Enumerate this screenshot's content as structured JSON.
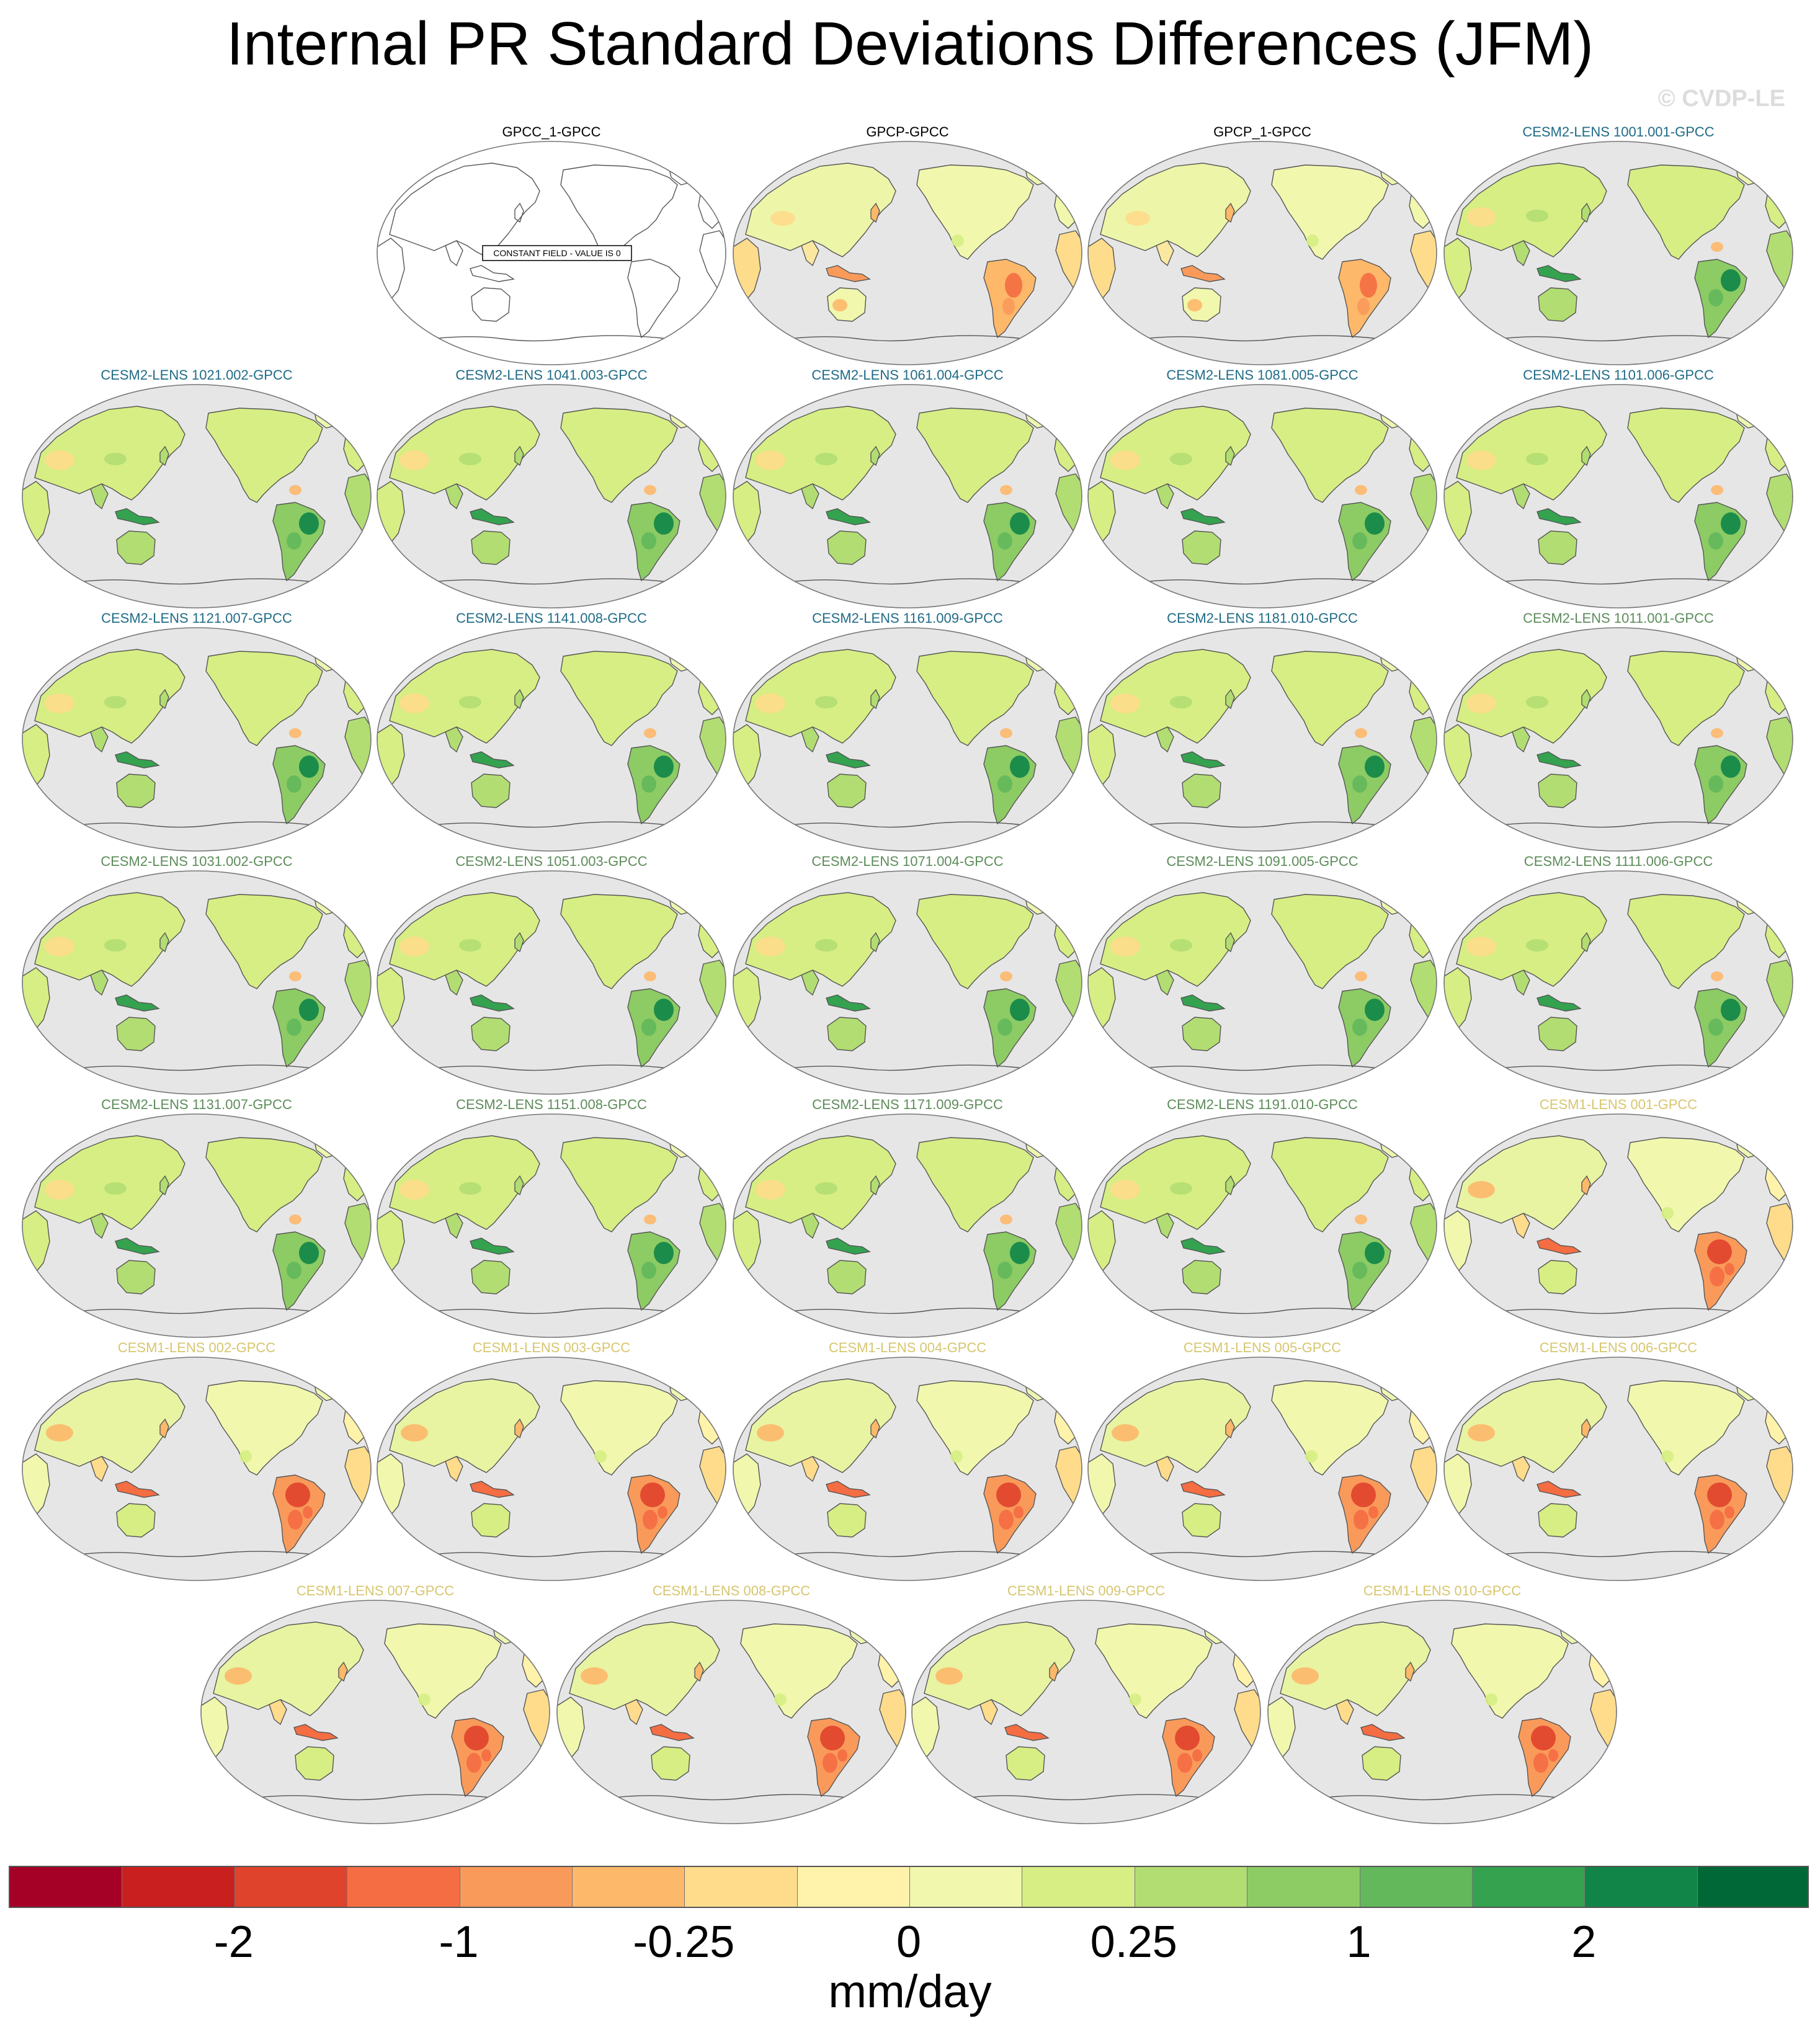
{
  "title": "Internal PR Standard Deviations Differences (JFM)",
  "copyright": "© CVDP-LE",
  "constant_field_note": "CONSTANT FIELD - VALUE IS 0",
  "colors": {
    "observations": "#000000",
    "cesm2_lens_macro": "#1f6b86",
    "cesm2_lens_smooth": "#5d8c5a",
    "cesm1_lens": "#d7c66e",
    "ocean": "#e6e6e6",
    "coast": "#555555"
  },
  "panels": [
    {
      "label": "GPCC_1-GPCC",
      "group": "observations",
      "constant": true,
      "pattern": "blank"
    },
    {
      "label": "GPCP-GPCC",
      "group": "observations",
      "pattern": "obs"
    },
    {
      "label": "GPCP_1-GPCC",
      "group": "observations",
      "pattern": "obs"
    },
    {
      "label": "CESM2-LENS 1001.001-GPCC",
      "group": "cesm2_lens_macro",
      "pattern": "cesm2"
    },
    {
      "label": "CESM2-LENS 1021.002-GPCC",
      "group": "cesm2_lens_macro",
      "pattern": "cesm2"
    },
    {
      "label": "CESM2-LENS 1041.003-GPCC",
      "group": "cesm2_lens_macro",
      "pattern": "cesm2"
    },
    {
      "label": "CESM2-LENS 1061.004-GPCC",
      "group": "cesm2_lens_macro",
      "pattern": "cesm2"
    },
    {
      "label": "CESM2-LENS 1081.005-GPCC",
      "group": "cesm2_lens_macro",
      "pattern": "cesm2"
    },
    {
      "label": "CESM2-LENS 1101.006-GPCC",
      "group": "cesm2_lens_macro",
      "pattern": "cesm2"
    },
    {
      "label": "CESM2-LENS 1121.007-GPCC",
      "group": "cesm2_lens_macro",
      "pattern": "cesm2"
    },
    {
      "label": "CESM2-LENS 1141.008-GPCC",
      "group": "cesm2_lens_macro",
      "pattern": "cesm2"
    },
    {
      "label": "CESM2-LENS 1161.009-GPCC",
      "group": "cesm2_lens_macro",
      "pattern": "cesm2"
    },
    {
      "label": "CESM2-LENS 1181.010-GPCC",
      "group": "cesm2_lens_macro",
      "pattern": "cesm2"
    },
    {
      "label": "CESM2-LENS 1011.001-GPCC",
      "group": "cesm2_lens_smooth",
      "pattern": "cesm2"
    },
    {
      "label": "CESM2-LENS 1031.002-GPCC",
      "group": "cesm2_lens_smooth",
      "pattern": "cesm2"
    },
    {
      "label": "CESM2-LENS 1051.003-GPCC",
      "group": "cesm2_lens_smooth",
      "pattern": "cesm2"
    },
    {
      "label": "CESM2-LENS 1071.004-GPCC",
      "group": "cesm2_lens_smooth",
      "pattern": "cesm2"
    },
    {
      "label": "CESM2-LENS 1091.005-GPCC",
      "group": "cesm2_lens_smooth",
      "pattern": "cesm2"
    },
    {
      "label": "CESM2-LENS 1111.006-GPCC",
      "group": "cesm2_lens_smooth",
      "pattern": "cesm2"
    },
    {
      "label": "CESM2-LENS 1131.007-GPCC",
      "group": "cesm2_lens_smooth",
      "pattern": "cesm2"
    },
    {
      "label": "CESM2-LENS 1151.008-GPCC",
      "group": "cesm2_lens_smooth",
      "pattern": "cesm2"
    },
    {
      "label": "CESM2-LENS 1171.009-GPCC",
      "group": "cesm2_lens_smooth",
      "pattern": "cesm2"
    },
    {
      "label": "CESM2-LENS 1191.010-GPCC",
      "group": "cesm2_lens_smooth",
      "pattern": "cesm2"
    },
    {
      "label": "CESM1-LENS 001-GPCC",
      "group": "cesm1_lens",
      "pattern": "cesm1"
    },
    {
      "label": "CESM1-LENS 002-GPCC",
      "group": "cesm1_lens",
      "pattern": "cesm1"
    },
    {
      "label": "CESM1-LENS 003-GPCC",
      "group": "cesm1_lens",
      "pattern": "cesm1"
    },
    {
      "label": "CESM1-LENS 004-GPCC",
      "group": "cesm1_lens",
      "pattern": "cesm1"
    },
    {
      "label": "CESM1-LENS 005-GPCC",
      "group": "cesm1_lens",
      "pattern": "cesm1"
    },
    {
      "label": "CESM1-LENS 006-GPCC",
      "group": "cesm1_lens",
      "pattern": "cesm1"
    },
    {
      "label": "CESM1-LENS 007-GPCC",
      "group": "cesm1_lens",
      "pattern": "cesm1"
    },
    {
      "label": "CESM1-LENS 008-GPCC",
      "group": "cesm1_lens",
      "pattern": "cesm1"
    },
    {
      "label": "CESM1-LENS 009-GPCC",
      "group": "cesm1_lens",
      "pattern": "cesm1"
    },
    {
      "label": "CESM1-LENS 010-GPCC",
      "group": "cesm1_lens",
      "pattern": "cesm1"
    }
  ],
  "colorbar": {
    "colors": [
      "#a50026",
      "#c9201f",
      "#e0432b",
      "#f46d43",
      "#f99a5b",
      "#fdb86a",
      "#fedc8b",
      "#fff2aa",
      "#f1f7ad",
      "#d6ee84",
      "#b2dd72",
      "#8dcb64",
      "#62b85b",
      "#34a24f",
      "#108547",
      "#006837"
    ],
    "ticks": [
      {
        "label": "-2",
        "boundary": 2
      },
      {
        "label": "-1",
        "boundary": 4
      },
      {
        "label": "-0.25",
        "boundary": 6
      },
      {
        "label": "0",
        "boundary": 8
      },
      {
        "label": "0.25",
        "boundary": 10
      },
      {
        "label": "1",
        "boundary": 12
      },
      {
        "label": "2",
        "boundary": 14
      }
    ],
    "units": "mm/day"
  }
}
